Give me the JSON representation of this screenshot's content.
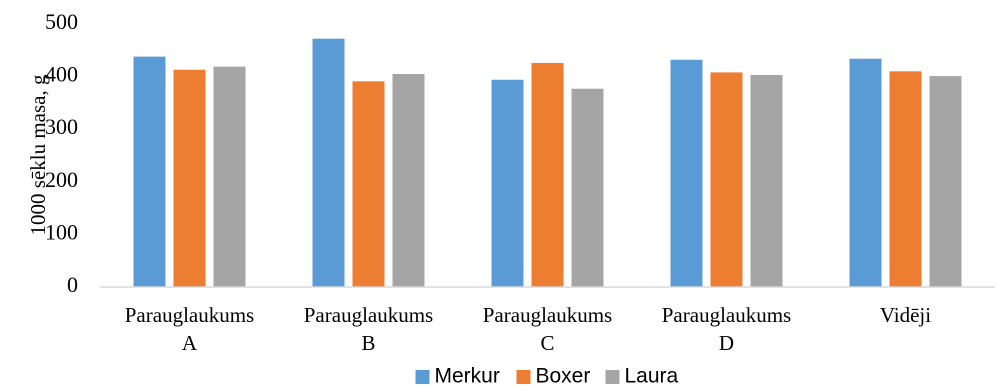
{
  "chart_data": {
    "type": "bar",
    "title": "",
    "xlabel": "",
    "ylabel": "1000 sēklu masa, g",
    "ylim": [
      0,
      500
    ],
    "yticks": [
      0,
      100,
      200,
      300,
      400,
      500
    ],
    "grid": false,
    "legend_position": "bottom",
    "categories": [
      [
        "Parauglaukums",
        "A"
      ],
      [
        "Parauglaukums",
        "B"
      ],
      [
        "Parauglaukums",
        "C"
      ],
      [
        "Parauglaukums",
        "D"
      ],
      [
        "Vidēji"
      ]
    ],
    "series": [
      {
        "name": "Merkur",
        "color": "#5B9BD5",
        "values": [
          438,
          472,
          394,
          432,
          434
        ]
      },
      {
        "name": "Boxer",
        "color": "#ED7D31",
        "values": [
          413,
          391,
          426,
          408,
          410
        ]
      },
      {
        "name": "Laura",
        "color": "#A5A5A5",
        "values": [
          419,
          405,
          377,
          403,
          401
        ]
      }
    ]
  }
}
